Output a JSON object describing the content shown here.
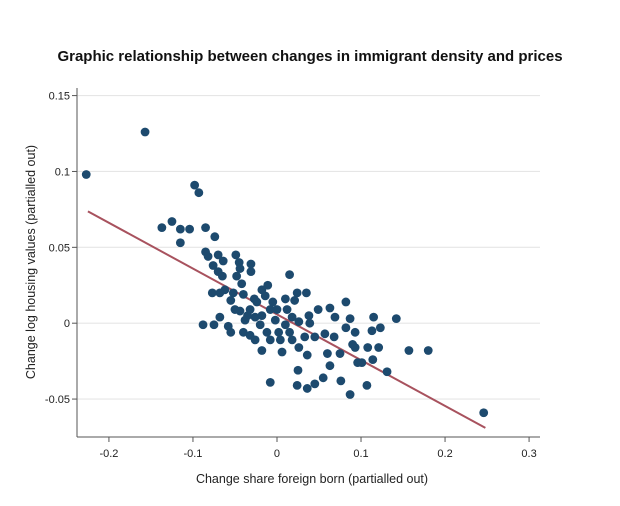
{
  "chart_data": {
    "type": "scatter",
    "title": "Graphic relationship between changes in immigrant density and prices",
    "xlabel": "Change share foreign born (partialled out)",
    "ylabel": "Change log housing values (partialled out)",
    "xlim": [
      -0.238,
      0.313
    ],
    "ylim": [
      -0.075,
      0.155
    ],
    "xticks": [
      -0.2,
      -0.1,
      0,
      0.1,
      0.2,
      0.3
    ],
    "xtick_labels": [
      "-0.2",
      "-0.1",
      "0",
      "0.1",
      "0.2",
      "0.3"
    ],
    "yticks": [
      0.15,
      0.1,
      0.05,
      0,
      -0.05
    ],
    "ytick_labels": [
      "0.15",
      "0.1",
      "0.05",
      "0",
      "-0.05"
    ],
    "grid": "horizontal",
    "colors": {
      "points": "#1d4a6e",
      "fit_line": "#a8525e",
      "grid": "#e6e6e6"
    },
    "fit_line": {
      "x": [
        -0.225,
        0.248
      ],
      "y": [
        0.0737,
        -0.069
      ]
    },
    "points": [
      [
        -0.227,
        0.098
      ],
      [
        -0.157,
        0.126
      ],
      [
        -0.098,
        0.091
      ],
      [
        -0.093,
        0.086
      ],
      [
        -0.137,
        0.063
      ],
      [
        -0.125,
        0.067
      ],
      [
        -0.115,
        0.062
      ],
      [
        -0.104,
        0.062
      ],
      [
        -0.115,
        0.053
      ],
      [
        -0.085,
        0.063
      ],
      [
        -0.074,
        0.057
      ],
      [
        -0.07,
        0.045
      ],
      [
        -0.085,
        0.047
      ],
      [
        -0.082,
        0.044
      ],
      [
        -0.076,
        0.038
      ],
      [
        -0.064,
        0.041
      ],
      [
        -0.07,
        0.034
      ],
      [
        -0.065,
        0.031
      ],
      [
        -0.049,
        0.045
      ],
      [
        -0.045,
        0.04
      ],
      [
        -0.044,
        0.036
      ],
      [
        -0.048,
        0.031
      ],
      [
        0.015,
        0.032
      ],
      [
        -0.031,
        0.039
      ],
      [
        -0.031,
        0.034
      ],
      [
        -0.042,
        0.026
      ],
      [
        -0.062,
        0.022
      ],
      [
        -0.077,
        0.02
      ],
      [
        -0.068,
        0.02
      ],
      [
        -0.04,
        0.019
      ],
      [
        -0.052,
        0.02
      ],
      [
        -0.055,
        0.015
      ],
      [
        -0.027,
        0.016
      ],
      [
        -0.032,
        0.009
      ],
      [
        -0.024,
        0.014
      ],
      [
        -0.044,
        0.008
      ],
      [
        -0.018,
        0.005
      ],
      [
        -0.008,
        0.009
      ],
      [
        0.0,
        0.009
      ],
      [
        0.012,
        0.009
      ],
      [
        0.024,
        0.02
      ],
      [
        0.035,
        0.02
      ],
      [
        -0.068,
        0.004
      ],
      [
        -0.035,
        0.005
      ],
      [
        -0.026,
        0.004
      ],
      [
        -0.005,
        0.014
      ],
      [
        0.018,
        0.004
      ],
      [
        0.038,
        0.005
      ],
      [
        0.049,
        0.009
      ],
      [
        -0.075,
        -0.001
      ],
      [
        -0.058,
        -0.002
      ],
      [
        -0.055,
        -0.006
      ],
      [
        -0.04,
        -0.006
      ],
      [
        -0.012,
        -0.006
      ],
      [
        0.002,
        -0.006
      ],
      [
        0.015,
        -0.006
      ],
      [
        0.026,
        0.001
      ],
      [
        0.039,
        0.0
      ],
      [
        -0.032,
        -0.008
      ],
      [
        -0.026,
        -0.011
      ],
      [
        -0.008,
        -0.011
      ],
      [
        0.004,
        -0.011
      ],
      [
        0.018,
        -0.011
      ],
      [
        0.033,
        -0.009
      ],
      [
        0.045,
        -0.009
      ],
      [
        0.057,
        -0.007
      ],
      [
        0.068,
        -0.009
      ],
      [
        0.093,
        -0.006
      ],
      [
        0.082,
        -0.003
      ],
      [
        0.087,
        0.003
      ],
      [
        0.063,
        0.01
      ],
      [
        0.082,
        0.014
      ],
      [
        0.115,
        0.004
      ],
      [
        0.123,
        -0.003
      ],
      [
        -0.088,
        -0.001
      ],
      [
        -0.018,
        -0.018
      ],
      [
        0.006,
        -0.019
      ],
      [
        0.026,
        -0.016
      ],
      [
        0.036,
        -0.021
      ],
      [
        0.06,
        -0.02
      ],
      [
        0.075,
        -0.02
      ],
      [
        0.093,
        -0.016
      ],
      [
        0.108,
        -0.016
      ],
      [
        0.114,
        -0.024
      ],
      [
        0.096,
        -0.026
      ],
      [
        0.142,
        0.003
      ],
      [
        0.157,
        -0.018
      ],
      [
        0.18,
        -0.018
      ],
      [
        0.131,
        -0.032
      ],
      [
        0.063,
        -0.028
      ],
      [
        0.055,
        -0.036
      ],
      [
        0.025,
        -0.031
      ],
      [
        0.024,
        -0.041
      ],
      [
        0.045,
        -0.04
      ],
      [
        0.076,
        -0.038
      ],
      [
        -0.008,
        -0.039
      ],
      [
        0.036,
        -0.043
      ],
      [
        0.087,
        -0.047
      ],
      [
        0.107,
        -0.041
      ],
      [
        0.101,
        -0.026
      ],
      [
        0.246,
        -0.059
      ],
      [
        0.069,
        0.004
      ],
      [
        0.09,
        -0.014
      ],
      [
        0.113,
        -0.005
      ],
      [
        0.121,
        -0.016
      ],
      [
        -0.014,
        0.018
      ],
      [
        0.01,
        0.016
      ],
      [
        -0.018,
        0.022
      ],
      [
        -0.002,
        0.002
      ],
      [
        0.01,
        -0.001
      ],
      [
        -0.02,
        -0.001
      ],
      [
        -0.038,
        0.002
      ],
      [
        -0.05,
        0.009
      ],
      [
        -0.011,
        0.025
      ],
      [
        0.021,
        0.015
      ]
    ]
  }
}
